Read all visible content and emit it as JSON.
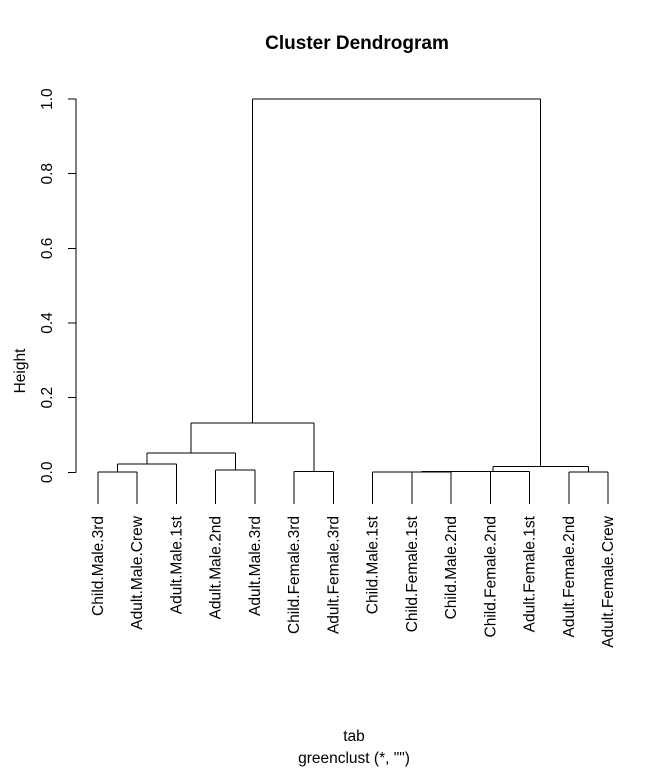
{
  "chart_data": {
    "type": "dendrogram",
    "title": "Cluster Dendrogram",
    "ylabel": "Height",
    "xlabel": "tab",
    "sub": "greenclust (*, \"\")",
    "ylim": [
      0,
      1
    ],
    "yticks": [
      "0.0",
      "0.2",
      "0.4",
      "0.6",
      "0.8",
      "1.0"
    ],
    "grid": false,
    "legend": null,
    "line_color": "#000000",
    "background_color": "#ffffff",
    "leaves": [
      "Child.Male.3rd",
      "Adult.Male.Crew",
      "Adult.Male.1st",
      "Adult.Male.2nd",
      "Adult.Male.3rd",
      "Child.Female.3rd",
      "Adult.Female.3rd",
      "Child.Male.1st",
      "Child.Female.1st",
      "Child.Male.2nd",
      "Child.Female.2nd",
      "Adult.Female.1st",
      "Adult.Female.2nd",
      "Adult.Female.Crew"
    ],
    "merges": [
      {
        "a": -1,
        "b": -2,
        "h": 0.001
      },
      {
        "a": 1,
        "b": -3,
        "h": 0.022
      },
      {
        "a": -4,
        "b": -5,
        "h": 0.006
      },
      {
        "a": 2,
        "b": 3,
        "h": 0.052
      },
      {
        "a": -6,
        "b": -7,
        "h": 0.002
      },
      {
        "a": 4,
        "b": 5,
        "h": 0.132
      },
      {
        "a": -8,
        "b": -9,
        "h": 0.0005
      },
      {
        "a": 7,
        "b": -10,
        "h": 0.001
      },
      {
        "a": 8,
        "b": -11,
        "h": 0.0015
      },
      {
        "a": 9,
        "b": -12,
        "h": 0.002
      },
      {
        "a": -13,
        "b": -14,
        "h": 0.001
      },
      {
        "a": 10,
        "b": 11,
        "h": 0.015
      },
      {
        "a": 6,
        "b": 12,
        "h": 1.0
      }
    ]
  }
}
